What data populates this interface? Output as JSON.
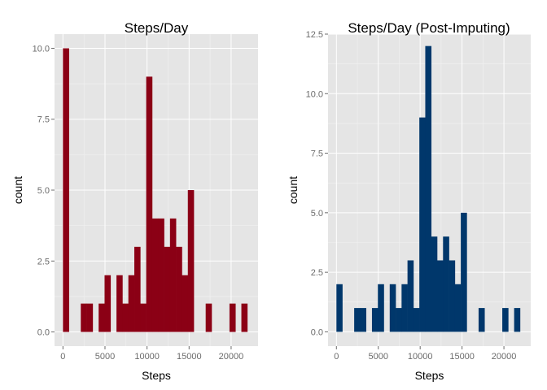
{
  "chart_data": [
    {
      "type": "bar",
      "title": "Steps/Day",
      "xlabel": "Steps",
      "ylabel": "count",
      "color": "#8b0015",
      "xlim": [
        -1000,
        23200
      ],
      "ylim": [
        -0.5,
        10.5
      ],
      "x_ticks": [
        0,
        5000,
        10000,
        15000,
        20000
      ],
      "y_ticks": [
        0,
        2.5,
        5,
        7.5,
        10
      ],
      "x_tick_labels": [
        "0",
        "5000",
        "10000",
        "15000",
        "20000"
      ],
      "y_tick_labels": [
        "0.0",
        "2.5",
        "5.0",
        "7.5",
        "10.0"
      ],
      "bin_width": 707.3,
      "x": [
        0,
        707,
        1415,
        2122,
        2829,
        3536,
        4244,
        4951,
        5658,
        6366,
        7073,
        7780,
        8488,
        9195,
        9902,
        10610,
        11317,
        12024,
        12731,
        13439,
        14146,
        14853,
        15561,
        16268,
        16975,
        17683,
        18390,
        19097,
        19805,
        20512,
        21219
      ],
      "values": [
        10,
        0,
        0,
        1,
        1,
        0,
        1,
        2,
        0,
        2,
        1,
        2,
        3,
        1,
        9,
        4,
        4,
        3,
        4,
        3,
        2,
        5,
        0,
        0,
        1,
        0,
        0,
        0,
        1,
        0,
        1
      ]
    },
    {
      "type": "bar",
      "title": "Steps/Day (Post-Imputing)",
      "xlabel": "Steps",
      "ylabel": "count",
      "color": "#00376b",
      "xlim": [
        -1000,
        23200
      ],
      "ylim": [
        -0.6,
        12.5
      ],
      "x_ticks": [
        0,
        5000,
        10000,
        15000,
        20000
      ],
      "y_ticks": [
        0,
        2.5,
        5,
        7.5,
        10,
        12.5
      ],
      "x_tick_labels": [
        "0",
        "5000",
        "10000",
        "15000",
        "20000"
      ],
      "y_tick_labels": [
        "0.0",
        "2.5",
        "5.0",
        "7.5",
        "10.0",
        "12.5"
      ],
      "bin_width": 707.3,
      "x": [
        0,
        707,
        1415,
        2122,
        2829,
        3536,
        4244,
        4951,
        5658,
        6366,
        7073,
        7780,
        8488,
        9195,
        9902,
        10610,
        11317,
        12024,
        12731,
        13439,
        14146,
        14853,
        15561,
        16268,
        16975,
        17683,
        18390,
        19097,
        19805,
        20512,
        21219
      ],
      "values": [
        2,
        0,
        0,
        1,
        1,
        0,
        1,
        2,
        0,
        2,
        1,
        2,
        3,
        1,
        9,
        12,
        4,
        3,
        4,
        3,
        2,
        5,
        0,
        0,
        1,
        0,
        0,
        0,
        1,
        0,
        1
      ]
    }
  ]
}
